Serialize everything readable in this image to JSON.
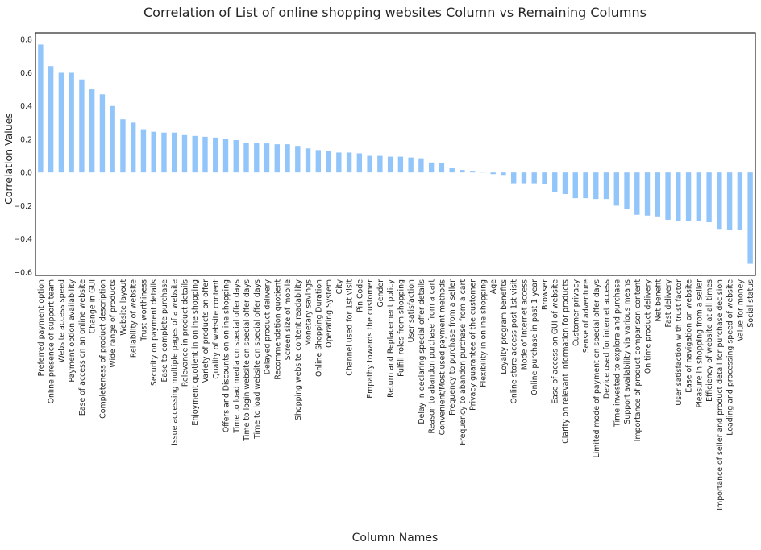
{
  "chart_data": {
    "type": "bar",
    "title": "Correlation of List of online shopping websites Column vs Remaining Columns",
    "xlabel": "Column Names",
    "ylabel": "Correlation Values",
    "ylim": [
      -0.62,
      0.84
    ],
    "yticks": [
      -0.6,
      -0.4,
      -0.2,
      0.0,
      0.2,
      0.4,
      0.6,
      0.8
    ],
    "ytick_labels": [
      "−0.6",
      "−0.4",
      "−0.2",
      "0.0",
      "0.2",
      "0.4",
      "0.6",
      "0.8"
    ],
    "grid": false,
    "bar_color": "#92c5f9",
    "categories": [
      "Preferred payment option",
      "Online presence of support team",
      "Website access speed",
      "Payment option availability",
      "Ease of access on an online website",
      "Change in GUI",
      "Completeness of product description",
      "Wide range of products",
      "Website layout",
      "Reliability of website",
      "Trust worthiness",
      "Security on payment details",
      "Ease to complete purchase",
      "Issue accessing multiple pages of a website",
      "Relevance in product details",
      "Enjoyment quotient in online shopping",
      "Variety of products on offer",
      "Quality of website content",
      "Offers and Discounts on online shopping",
      "Time to load media on special offer days",
      "Time to login website on special offer days",
      "Time to load website on special offer days",
      "Delayed product delivery",
      "Recommendation quotient",
      "Screen size of mobile",
      "Shopping website content readability",
      "Monetary savings",
      "Online Shopping Duration",
      "Operating System",
      "City",
      "Channel used for 1st visit",
      "Pin Code",
      "Empathy towards the customer",
      "Gender",
      "Return and Replacement policy",
      "Fulfill roles from shopping",
      "User satisfaction",
      "Delay in declaring special offer details",
      "Reason to abandon purchase from a cart",
      "Convenient/Most used payment methods",
      "Frequency to purchase from a seller",
      "Frequency to abandon purchase from a cart",
      "Privacy guarantee of the customer",
      "Flexibility in online shopping",
      "Age",
      "Loyalty program benefits",
      "Online store access post 1st visit",
      "Mode of internet access",
      "Online purchase in past 1 year",
      "Browser",
      "Ease of access on GUI of website",
      "Clarity on relevant information for products",
      "Customer privacy",
      "Sense of adventure",
      "Limited mode of payment on special offer days",
      "Device used for internet access",
      "Time invested to explore and purchase",
      "Support availability via various means",
      "Importance of product comparison content",
      "On time product delivery",
      "Net benefit",
      "Fast delivery",
      "User satisfaction with trust factor",
      "Ease of navigation on website",
      "Pleasure in shopping from a seller",
      "Efficiency of website at all times",
      "Importance of seller and product detail for purchase decision",
      "Loading and processing speed of website",
      "Value for money",
      "Social status"
    ],
    "values": [
      0.77,
      0.64,
      0.6,
      0.6,
      0.56,
      0.5,
      0.47,
      0.4,
      0.32,
      0.3,
      0.26,
      0.245,
      0.24,
      0.24,
      0.225,
      0.22,
      0.215,
      0.21,
      0.2,
      0.195,
      0.18,
      0.18,
      0.175,
      0.17,
      0.17,
      0.16,
      0.145,
      0.135,
      0.13,
      0.12,
      0.12,
      0.115,
      0.1,
      0.1,
      0.095,
      0.095,
      0.09,
      0.085,
      0.06,
      0.055,
      0.025,
      0.015,
      0.01,
      0.005,
      -0.01,
      -0.015,
      -0.065,
      -0.065,
      -0.065,
      -0.07,
      -0.12,
      -0.13,
      -0.155,
      -0.155,
      -0.16,
      -0.16,
      -0.2,
      -0.22,
      -0.255,
      -0.26,
      -0.265,
      -0.285,
      -0.29,
      -0.295,
      -0.295,
      -0.3,
      -0.34,
      -0.345,
      -0.345,
      -0.55
    ]
  }
}
